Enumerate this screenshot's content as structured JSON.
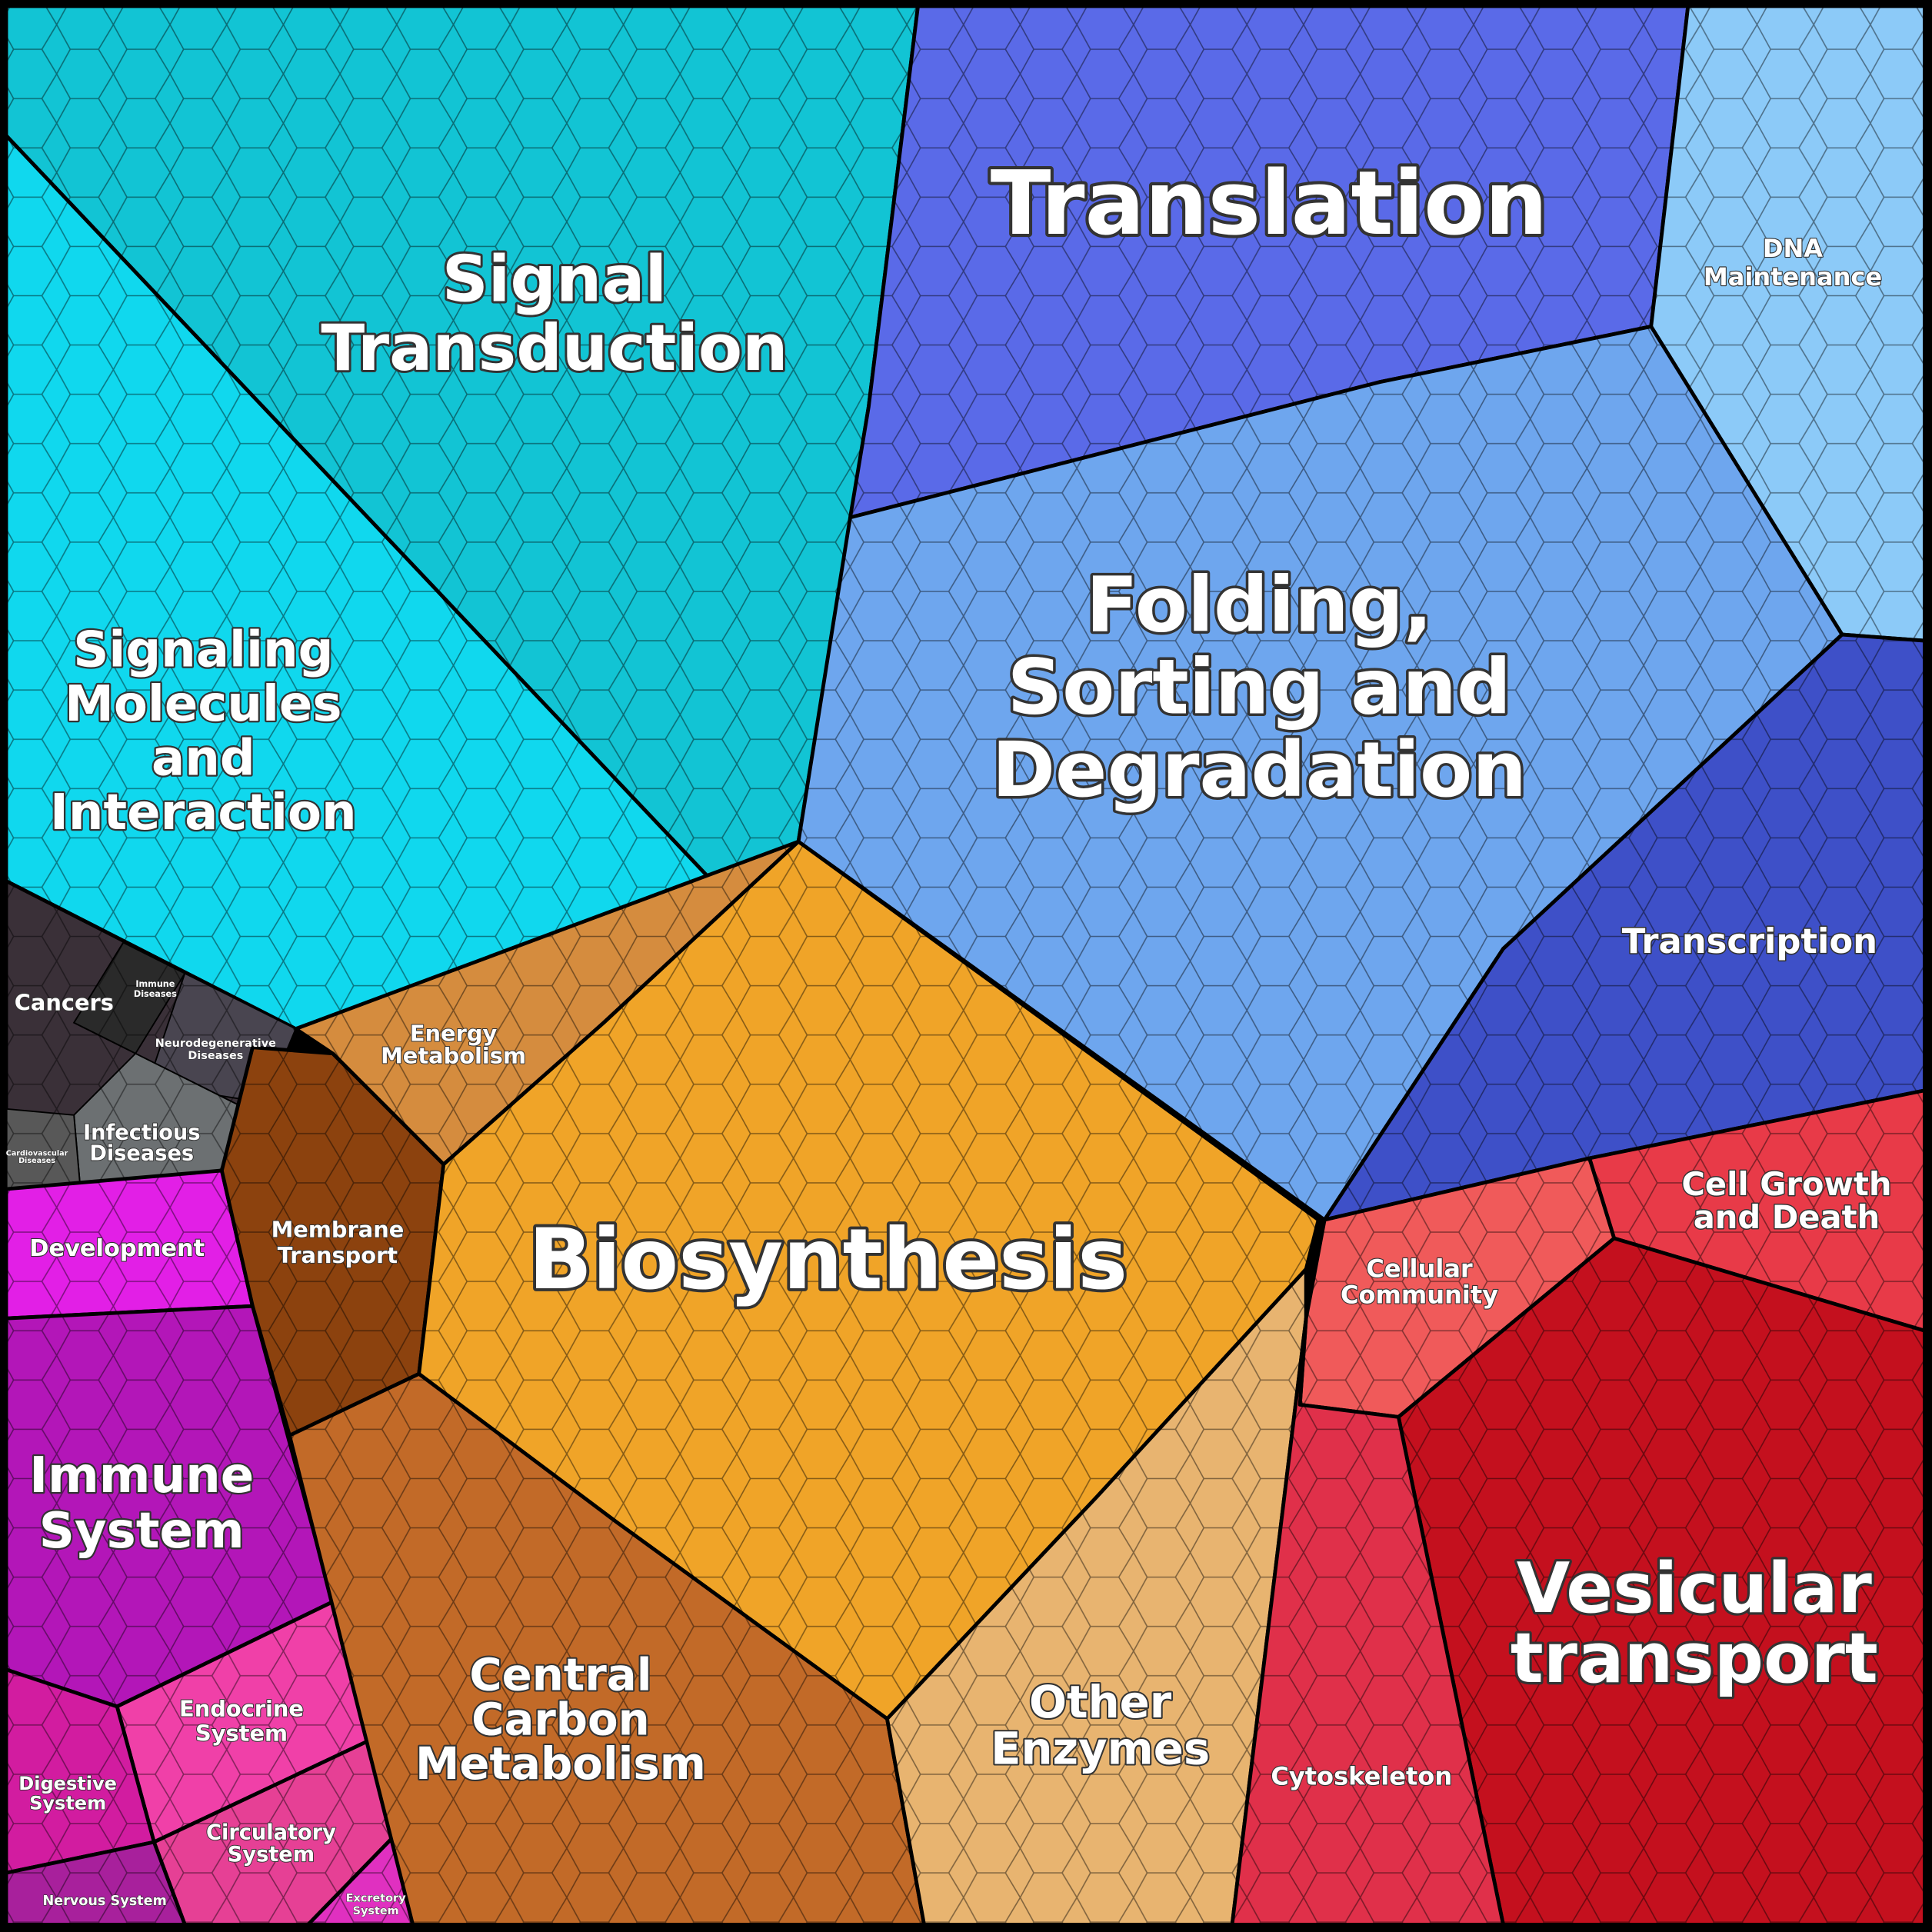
{
  "regions": [
    {
      "lines": [
        "Signal",
        "Transduction"
      ]
    },
    {
      "lines": [
        "Signaling",
        "Molecules",
        "and",
        "Interaction"
      ]
    },
    {
      "lines": [
        "Cancers"
      ]
    },
    {
      "lines": [
        "Immune",
        "Diseases"
      ]
    },
    {
      "lines": [
        "Neurodegenerative",
        "Diseases"
      ]
    },
    {
      "lines": [
        "Infectious",
        "Diseases"
      ]
    },
    {
      "lines": [
        "Cardiovascular",
        "Diseases"
      ]
    },
    {
      "lines": [
        "Development"
      ]
    },
    {
      "lines": [
        "Immune",
        "System"
      ]
    },
    {
      "lines": [
        "Endocrine",
        "System"
      ]
    },
    {
      "lines": [
        "Digestive",
        "System"
      ]
    },
    {
      "lines": [
        "Circulatory",
        "System"
      ]
    },
    {
      "lines": [
        "Nervous System"
      ]
    },
    {
      "lines": [
        "Excretory",
        "System"
      ]
    },
    {
      "lines": [
        "Energy",
        "Metabolism"
      ]
    },
    {
      "lines": [
        "Membrane",
        "Transport"
      ]
    },
    {
      "lines": [
        "Biosynthesis"
      ]
    },
    {
      "lines": [
        "Central",
        "Carbon",
        "Metabolism"
      ]
    },
    {
      "lines": [
        "Other",
        "Enzymes"
      ]
    },
    {
      "lines": [
        "Translation"
      ]
    },
    {
      "lines": [
        "DNA",
        "Maintenance"
      ]
    },
    {
      "lines": [
        "Folding,",
        "Sorting and",
        "Degradation"
      ]
    },
    {
      "lines": [
        "Transcription"
      ]
    },
    {
      "lines": [
        "Cell Growth",
        "and Death"
      ]
    },
    {
      "lines": [
        "Cellular",
        "Community"
      ]
    },
    {
      "lines": [
        "Vesicular",
        "transport"
      ]
    },
    {
      "lines": [
        "Cytoskeleton"
      ]
    }
  ]
}
